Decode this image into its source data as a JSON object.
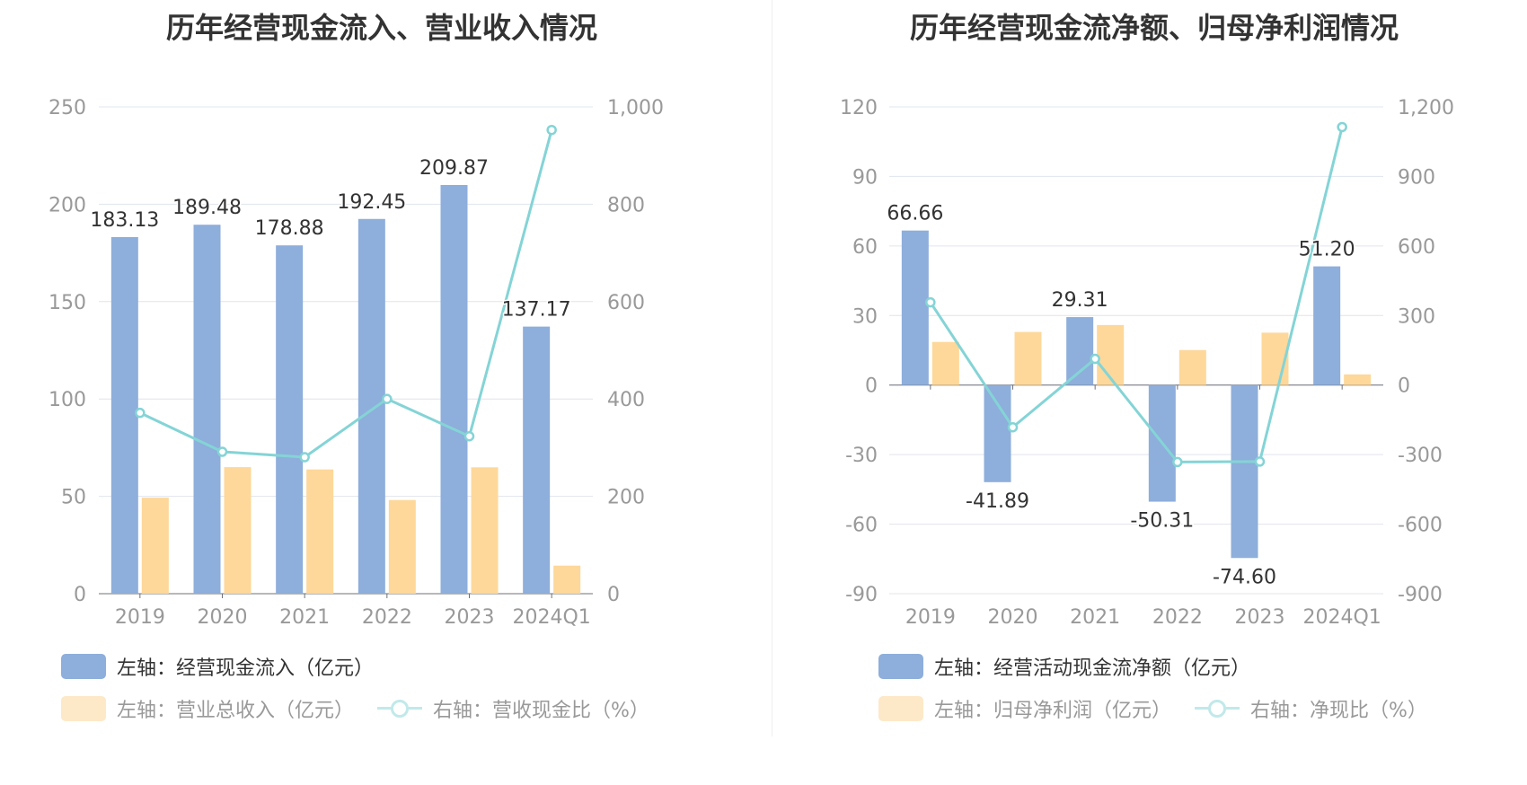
{
  "charts": [
    {
      "title": "历年经营现金流入、营业收入情况",
      "legend": [
        {
          "label": "左轴：经营现金流入（亿元）",
          "kind": "bar",
          "color": "#8eaedb"
        },
        {
          "label": "左轴：营业总收入（亿元）",
          "kind": "bar",
          "color": "#fdd89a"
        },
        {
          "label": "右轴：营收现金比（%）",
          "kind": "line",
          "color": "#84d4d6"
        }
      ]
    },
    {
      "title": "历年经营现金流净额、归母净利润情况",
      "legend": [
        {
          "label": "左轴：经营活动现金流净额（亿元）",
          "kind": "bar",
          "color": "#8eaedb"
        },
        {
          "label": "左轴：归母净利润（亿元）",
          "kind": "bar",
          "color": "#fdd89a"
        },
        {
          "label": "右轴：净现比（%）",
          "kind": "line",
          "color": "#84d4d6"
        }
      ]
    }
  ],
  "chart_data": [
    {
      "type": "bar",
      "title": "历年经营现金流入、营业收入情况",
      "categories": [
        "2019",
        "2020",
        "2021",
        "2022",
        "2023",
        "2024Q1"
      ],
      "series": [
        {
          "name": "左轴：经营现金流入（亿元）",
          "axis": "left",
          "type": "bar",
          "color": "#8eaedb",
          "values": [
            183.13,
            189.48,
            178.88,
            192.45,
            209.87,
            137.17
          ]
        },
        {
          "name": "左轴：营业总收入（亿元）",
          "axis": "left",
          "type": "bar",
          "color": "#fdd89a",
          "values": [
            49.3,
            65.0,
            63.8,
            48.1,
            64.9,
            14.4
          ]
        },
        {
          "name": "右轴：营收现金比（%）",
          "axis": "right",
          "type": "line",
          "color": "#84d4d6",
          "values": [
            371.5,
            291.5,
            280.4,
            400.1,
            323.4,
            952.6
          ]
        }
      ],
      "data_labels": [
        "183.13",
        "189.48",
        "178.88",
        "192.45",
        "209.87",
        "137.17"
      ],
      "left_axis": {
        "min": 0,
        "max": 250,
        "ticks": [
          "250",
          "200",
          "150",
          "100",
          "50",
          "0"
        ]
      },
      "right_axis": {
        "min": 0,
        "max": 1000,
        "ticks": [
          "1,000",
          "800",
          "600",
          "400",
          "200",
          "0"
        ]
      },
      "grid": true,
      "legend_position": "bottom-left"
    },
    {
      "type": "bar",
      "title": "历年经营现金流净额、归母净利润情况",
      "categories": [
        "2019",
        "2020",
        "2021",
        "2022",
        "2023",
        "2024Q1"
      ],
      "series": [
        {
          "name": "左轴：经营活动现金流净额（亿元）",
          "axis": "left",
          "type": "bar",
          "color": "#8eaedb",
          "values": [
            66.66,
            -41.89,
            29.31,
            -50.31,
            -74.6,
            51.2
          ]
        },
        {
          "name": "左轴：归母净利润（亿元）",
          "axis": "left",
          "type": "bar",
          "color": "#fdd89a",
          "values": [
            18.6,
            22.9,
            25.9,
            15.1,
            22.6,
            4.6
          ]
        },
        {
          "name": "右轴：净现比（%）",
          "axis": "right",
          "type": "line",
          "color": "#84d4d6",
          "values": [
            357.0,
            -182.0,
            113.0,
            -332.0,
            -330.0,
            1113.0
          ]
        }
      ],
      "data_labels": [
        "66.66",
        "-41.89",
        "29.31",
        "-50.31",
        "-74.60",
        "51.20"
      ],
      "left_axis": {
        "min": -90,
        "max": 120,
        "ticks": [
          "120",
          "90",
          "60",
          "30",
          "0",
          "-30",
          "-60",
          "-90"
        ]
      },
      "right_axis": {
        "min": -900,
        "max": 1200,
        "ticks": [
          "1,200",
          "900",
          "600",
          "300",
          "0",
          "-300",
          "-600",
          "-900"
        ]
      },
      "grid": true,
      "legend_position": "bottom-left"
    }
  ]
}
